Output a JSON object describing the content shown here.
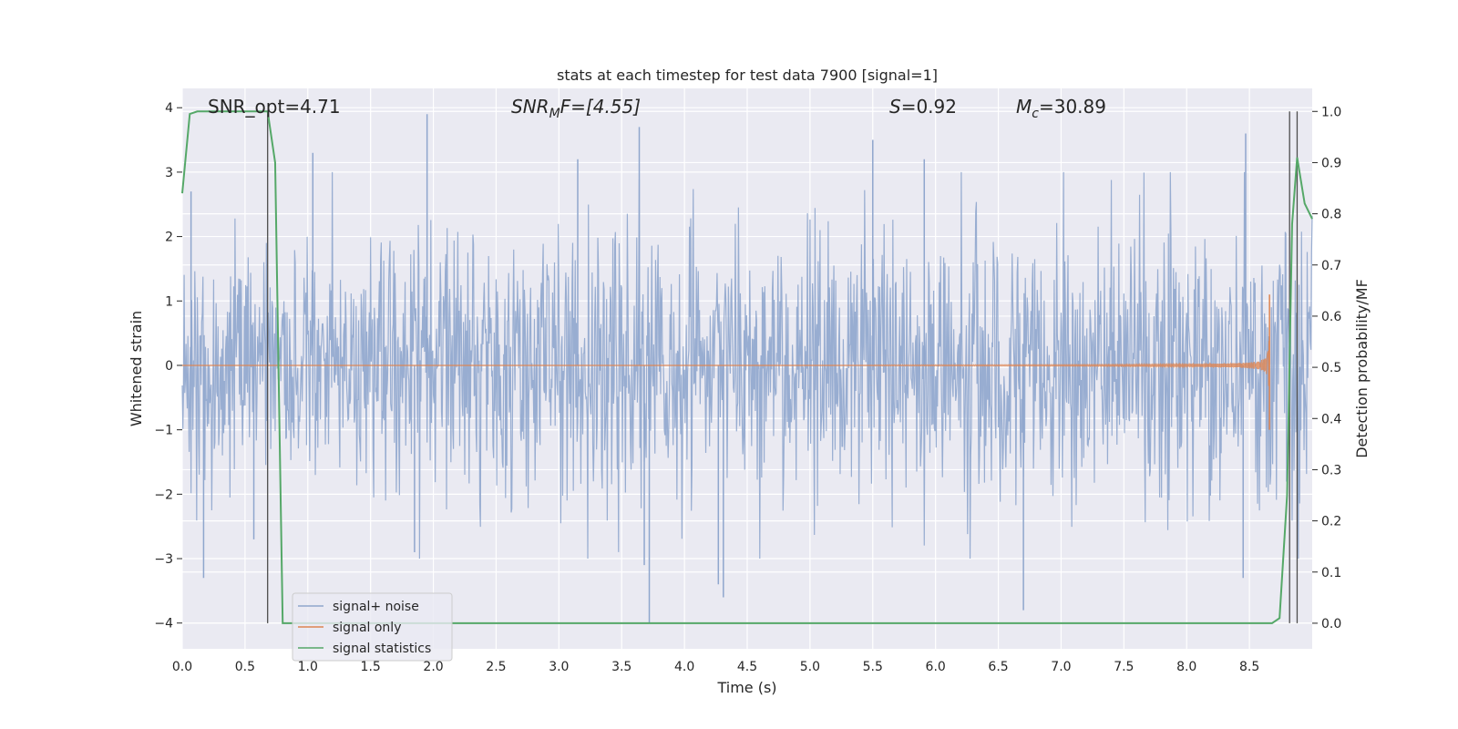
{
  "chart_data": {
    "type": "line",
    "title": "stats at each timestep for test data 7900 [signal=1]",
    "xlabel": "Time (s)",
    "ylabel": "Whitened strain",
    "ylabel_right": "Detection probability/MF",
    "xlim": [
      0.0,
      9.0
    ],
    "ylim": [
      -4.4,
      4.3
    ],
    "ylim_right": [
      -0.05,
      1.045
    ],
    "x_ticks": [
      "0.0",
      "0.5",
      "1.0",
      "1.5",
      "2.0",
      "2.5",
      "3.0",
      "3.5",
      "4.0",
      "4.5",
      "5.0",
      "5.5",
      "6.0",
      "6.5",
      "7.0",
      "7.5",
      "8.0",
      "8.5"
    ],
    "y_ticks": [
      "−4",
      "−3",
      "−2",
      "−1",
      "0",
      "1",
      "2",
      "3",
      "4"
    ],
    "y_ticks_right": [
      "0.0",
      "0.1",
      "0.2",
      "0.3",
      "0.4",
      "0.5",
      "0.6",
      "0.7",
      "0.8",
      "0.9",
      "1.0"
    ],
    "grid": true,
    "legend_position": "lower-left",
    "annotations": {
      "snr_opt": "SNR_opt=4.71",
      "snr_mf_main": "SNR",
      "snr_mf_sub": "M",
      "snr_mf_rest": "F=[4.55]",
      "s_main": "S",
      "s_rest": "=0.92",
      "mc_main": "M",
      "mc_sub": "c",
      "mc_rest": "=30.89"
    },
    "vertical_lines_x": [
      0.68,
      8.82,
      8.88
    ],
    "series": [
      {
        "name": "signal+ noise",
        "color": "#8fa6cd",
        "description_of_shape": "dense white-noise strain, core amplitude about ±1.5, peaks to about ±4",
        "peaks": [
          [
            0.07,
            2.7
          ],
          [
            0.17,
            -3.3
          ],
          [
            0.57,
            -2.7
          ],
          [
            1.04,
            3.3
          ],
          [
            1.95,
            3.9
          ],
          [
            1.85,
            -2.9
          ],
          [
            3.15,
            3.2
          ],
          [
            3.64,
            3.7
          ],
          [
            3.68,
            -3.1
          ],
          [
            3.72,
            -4.0
          ],
          [
            4.27,
            -3.4
          ],
          [
            4.31,
            -3.6
          ],
          [
            5.5,
            3.5
          ],
          [
            5.91,
            3.2
          ],
          [
            6.7,
            -3.8
          ],
          [
            8.47,
            3.6
          ],
          [
            8.45,
            -3.3
          ]
        ]
      },
      {
        "name": "signal only",
        "color": "#dd8452",
        "description_of_shape": "chirp signal near zero, amplitude grows toward merger at about 8.66 s",
        "peaks": [
          [
            8.66,
            1.1
          ],
          [
            8.66,
            -1.0
          ]
        ]
      },
      {
        "name": "signal statistics",
        "color": "#55a868",
        "axis": "right",
        "x": [
          0.0,
          0.06,
          0.12,
          0.2,
          0.3,
          0.4,
          0.5,
          0.6,
          0.68,
          0.74,
          0.8,
          1.0,
          2.0,
          3.0,
          4.0,
          5.0,
          6.0,
          7.0,
          8.0,
          8.6,
          8.68,
          8.74,
          8.8,
          8.84,
          8.88,
          8.94,
          9.0
        ],
        "values": [
          0.84,
          0.995,
          1.0,
          1.0,
          1.0,
          1.0,
          1.0,
          1.0,
          1.0,
          0.9,
          0.0,
          0.0,
          0.0,
          0.0,
          0.0,
          0.0,
          0.0,
          0.0,
          0.0,
          0.0,
          0.0,
          0.01,
          0.25,
          0.78,
          0.91,
          0.82,
          0.79
        ]
      }
    ]
  }
}
